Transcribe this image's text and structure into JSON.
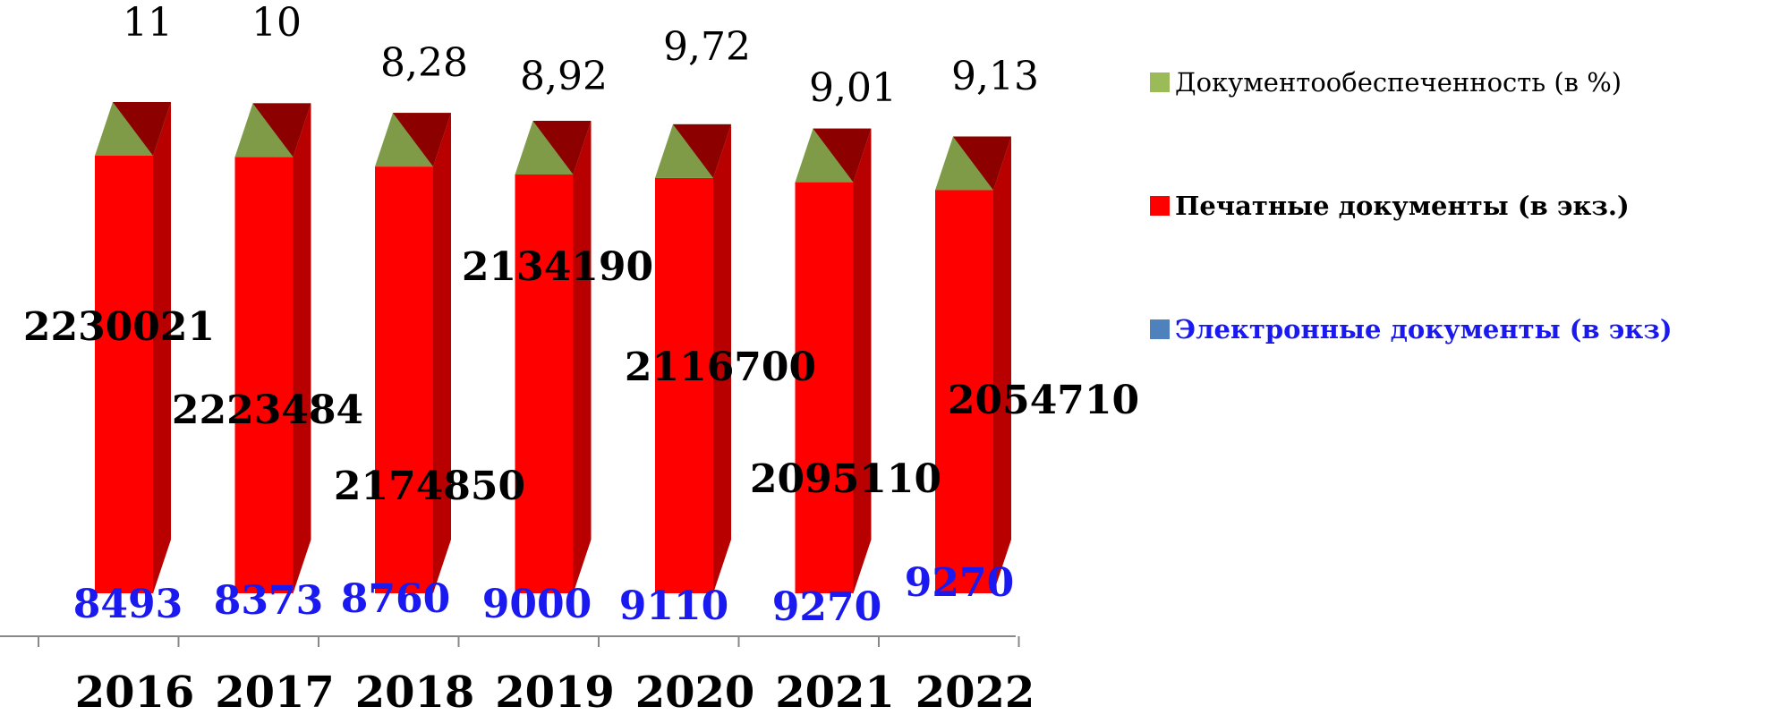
{
  "chart_data": {
    "type": "bar",
    "categories": [
      "2016",
      "2017",
      "2018",
      "2019",
      "2020",
      "2021",
      "2022"
    ],
    "series": [
      {
        "name": "Документообеспеченность (в %)",
        "values": [
          11,
          10,
          8.28,
          8.92,
          9.72,
          9.01,
          9.13
        ],
        "labels": [
          "11",
          "10",
          "8,28",
          "8,92",
          "9,72",
          "9,01",
          "9,13"
        ],
        "color": "#7f9b47"
      },
      {
        "name": "Печатные документы (в экз.)",
        "values": [
          2230021,
          2223484,
          2174850,
          2134190,
          2116700,
          2095110,
          2054710
        ],
        "labels": [
          "2230021",
          "2223484",
          "2174850",
          "2134190",
          "2116700",
          "2095110",
          "2054710"
        ],
        "color": "#ff0000"
      },
      {
        "name": "Электронные документы (в экз)",
        "values": [
          8493,
          8373,
          8760,
          9000,
          9110,
          9270,
          9270
        ],
        "labels": [
          "8493",
          "8373",
          "8760",
          "9000",
          "9110",
          "9270",
          "9270"
        ],
        "color": "#1a1af0"
      }
    ],
    "stacked": true,
    "three_d": true,
    "legend_position": "right",
    "grid": false
  },
  "legend": [
    {
      "label": "Документообеспеченность (в %)",
      "swatch_color": "#9bbb59",
      "text_color": "#000000",
      "bold": false
    },
    {
      "label": "Печатные документы (в экз.)",
      "swatch_color": "#ff0000",
      "text_color": "#000000",
      "bold": true
    },
    {
      "label": "Электронные документы (в экз)",
      "swatch_color": "#4f81bd",
      "text_color": "#1a1af0",
      "bold": true
    }
  ]
}
